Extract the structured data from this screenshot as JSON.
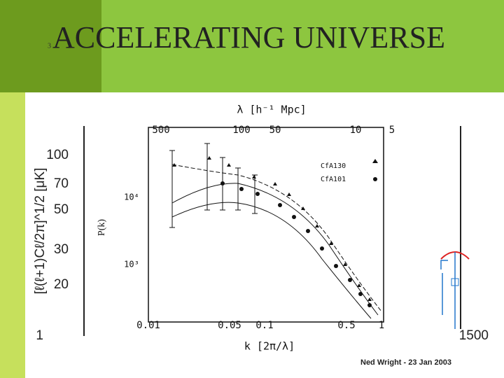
{
  "slide": {
    "number": "3",
    "title": "ACCELERATING UNIVERSE",
    "footer": "Ned Wright - 23 Jan 2003"
  },
  "figure": {
    "cmb_axis_label": "[ℓ(ℓ+1)Cℓ/2π]^1/2 [μK]",
    "cmb_y_ticks": [
      "100",
      "70",
      "50",
      "30",
      "20"
    ],
    "cmb_x_ticks": [
      "1",
      "1500"
    ],
    "top_axis_label": "λ [h⁻¹ Mpc]",
    "top_ticks": [
      "500",
      "100",
      "50",
      "10",
      "5"
    ],
    "y_axis_label": "P(k)",
    "y_ticks": [
      "10⁴",
      "10³"
    ],
    "x_axis_label": "k [2π/λ]",
    "x_ticks": [
      "0.01",
      "0.05",
      "0.1",
      "0.5",
      "1"
    ],
    "legend": [
      "CfA130",
      "CfA101"
    ]
  }
}
